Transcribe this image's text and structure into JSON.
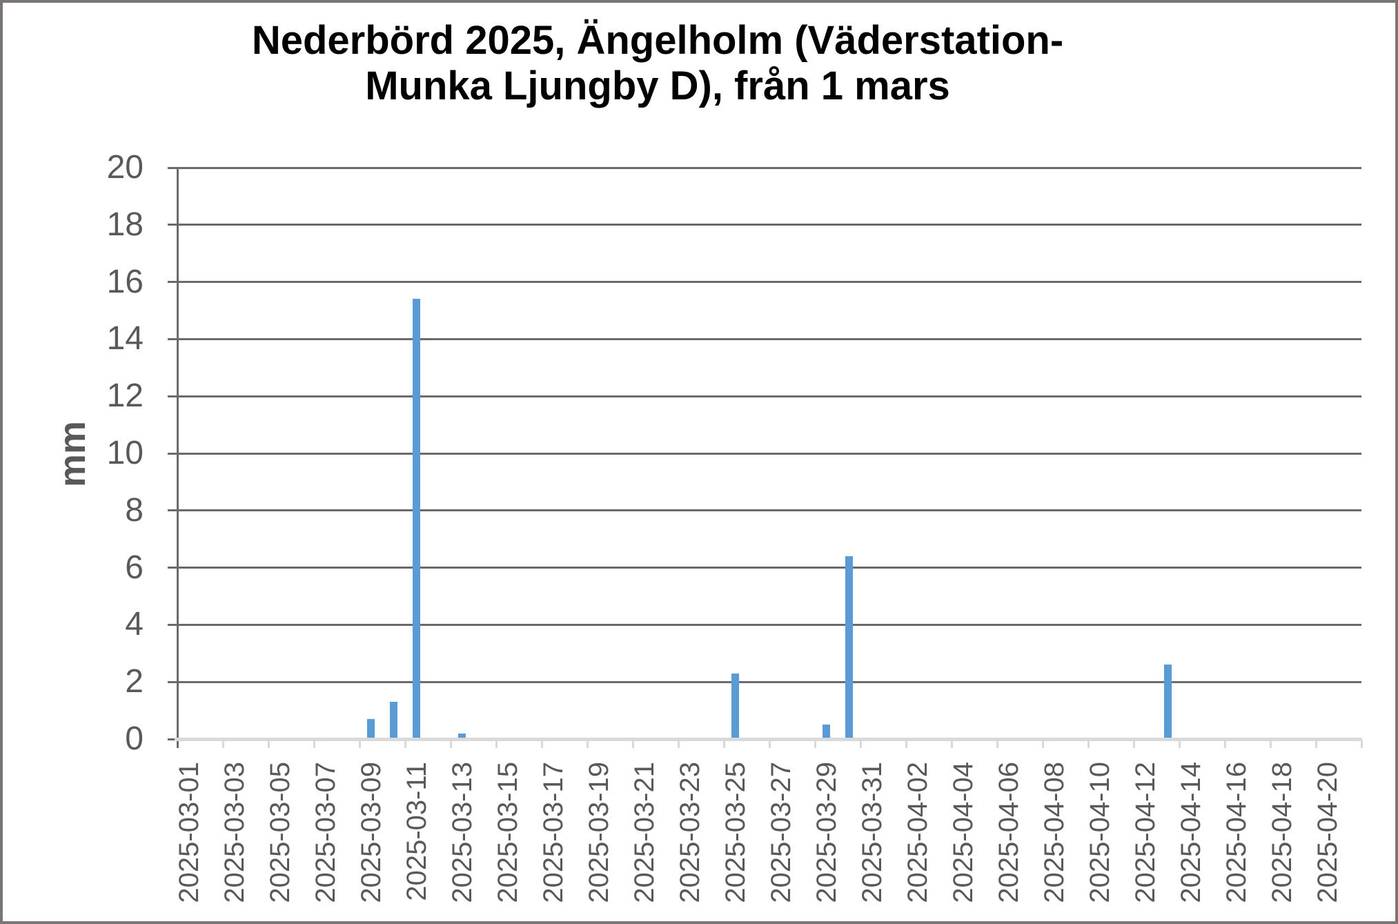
{
  "chart_data": {
    "type": "bar",
    "title": "Nederbörd 2025, Ängelholm (Väderstation-Munka Ljungby D), från 1 mars",
    "title_lines": [
      "Nederbörd 2025, Ängelholm (Väderstation-",
      "Munka Ljungby D), från 1 mars"
    ],
    "ylabel": "mm",
    "ylim": [
      0,
      20
    ],
    "ytick_step": 2,
    "ytick_labels": [
      "0",
      "2",
      "4",
      "6",
      "8",
      "10",
      "12",
      "14",
      "16",
      "18",
      "20"
    ],
    "xtick_labels": [
      "2025-03-01",
      "2025-03-03",
      "2025-03-05",
      "2025-03-07",
      "2025-03-09",
      "2025-03-11",
      "2025-03-13",
      "2025-03-15",
      "2025-03-17",
      "2025-03-19",
      "2025-03-21",
      "2025-03-23",
      "2025-03-25",
      "2025-03-27",
      "2025-03-29",
      "2025-03-31",
      "2025-04-02",
      "2025-04-04",
      "2025-04-06",
      "2025-04-08",
      "2025-04-10",
      "2025-04-12",
      "2025-04-14",
      "2025-04-16",
      "2025-04-18",
      "2025-04-20"
    ],
    "x_first_day": "2025-03-01",
    "num_day_slots": 52,
    "grid": true,
    "legend": "none",
    "bars": [
      {
        "date": "2025-03-09",
        "value": 0.7
      },
      {
        "date": "2025-03-10",
        "value": 1.3
      },
      {
        "date": "2025-03-11",
        "value": 15.4
      },
      {
        "date": "2025-03-13",
        "value": 0.2
      },
      {
        "date": "2025-03-25",
        "value": 2.3
      },
      {
        "date": "2025-03-29",
        "value": 0.5
      },
      {
        "date": "2025-03-30",
        "value": 6.4
      },
      {
        "date": "2025-04-13",
        "value": 2.6
      }
    ],
    "colors": {
      "bar": "#5B9BD5",
      "gridline": "#6a6a6a",
      "axis_light": "#d9d9d9",
      "text": "#595959",
      "title_text": "#000000",
      "border": "#7a7575",
      "background": "#ffffff"
    }
  }
}
